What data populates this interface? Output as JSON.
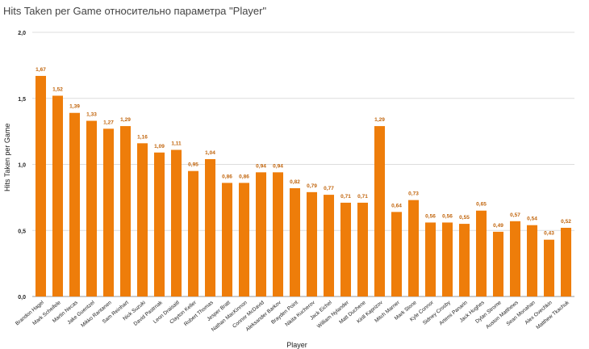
{
  "chart_data": {
    "type": "bar",
    "title": "Hits Taken per Game относительно параметра \"Player\"",
    "xlabel": "Player",
    "ylabel": "Hits Taken per Game",
    "ylim": [
      0,
      2
    ],
    "yticks": [
      "0,0",
      "0,5",
      "1,0",
      "1,5",
      "2,0"
    ],
    "grid": true,
    "bar_color": "#ee7d0a",
    "value_label_color": "#c0630a",
    "categories": [
      "Brandon Hagel",
      "Mark Scheifele",
      "Martin Necas",
      "Jake Guentzel",
      "Mikko Rantanen",
      "Sam Reinhart",
      "Nick Suzuki",
      "David Pastrnak",
      "Leon Draisaitl",
      "Clayton Keller",
      "Robert Thomas",
      "Jesper Bratt",
      "Nathan MacKinnon",
      "Connor McDavid",
      "Aleksander Barkov",
      "Brayden Point",
      "Nikita Kucherov",
      "Jack Eichel",
      "William Nylander",
      "Matt Duchene",
      "Kirill Kaprizov",
      "Mitch Marner",
      "Mark Stone",
      "Kyle Connor",
      "Sidney Crosby",
      "Artemi Panarin",
      "Jack Hughes",
      "Dylan Strome",
      "Auston Matthews",
      "Sean Monahan",
      "Alex Ovechkin",
      "Matthew Tkachuk"
    ],
    "values": [
      1.67,
      1.52,
      1.39,
      1.33,
      1.27,
      1.29,
      1.16,
      1.09,
      1.11,
      0.95,
      1.04,
      0.86,
      0.86,
      0.94,
      0.94,
      0.82,
      0.79,
      0.77,
      0.71,
      0.71,
      1.29,
      0.64,
      0.73,
      0.56,
      0.56,
      0.55,
      0.65,
      0.49,
      0.57,
      0.54,
      0.43,
      0.52
    ],
    "value_labels": [
      "1,67",
      "1,52",
      "1,39",
      "1,33",
      "1,27",
      "1,29",
      "1,16",
      "1,09",
      "1,11",
      "0,95",
      "1,04",
      "0,86",
      "0,86",
      "0,94",
      "0,94",
      "0,82",
      "0,79",
      "0,77",
      "0,71",
      "0,71",
      "1,29",
      "0,64",
      "0,73",
      "0,56",
      "0,56",
      "0,55",
      "0,65",
      "0,49",
      "0,57",
      "0,54",
      "0,43",
      "0,52"
    ]
  }
}
